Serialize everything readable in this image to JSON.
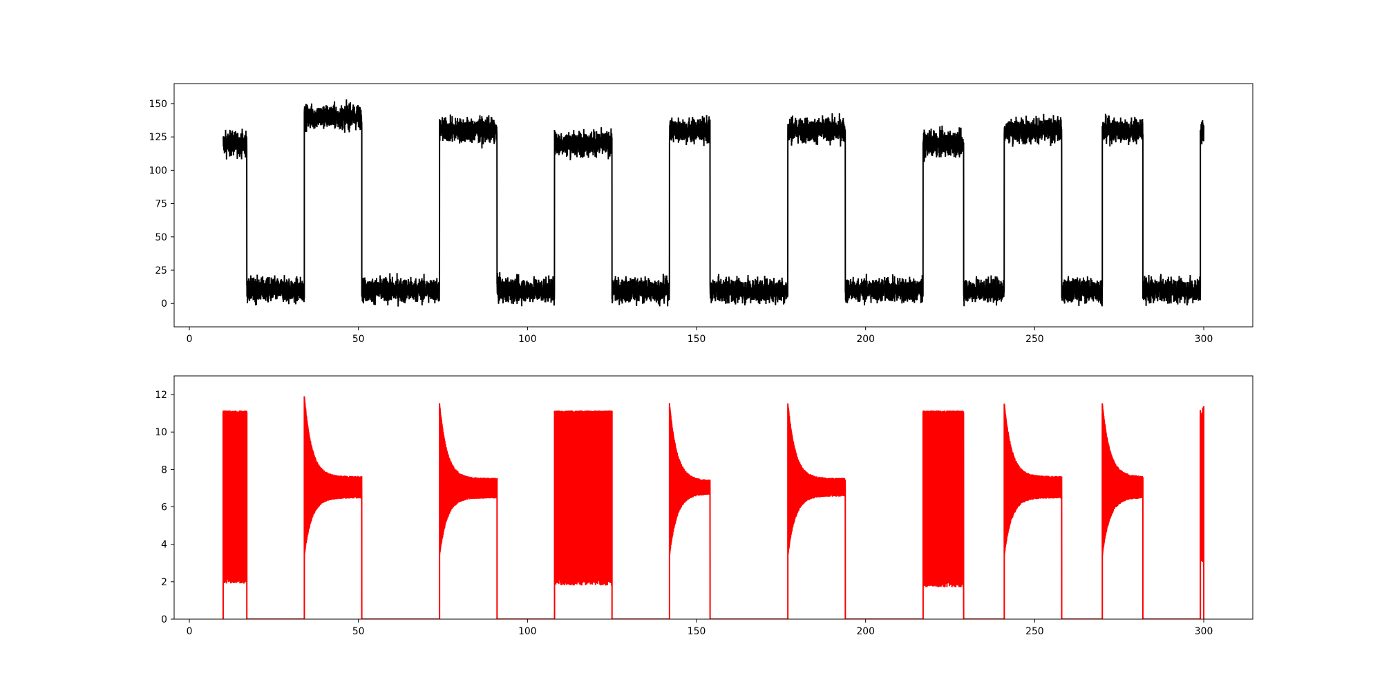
{
  "chart_data": [
    {
      "type": "line",
      "title": "",
      "xlabel": "",
      "ylabel": "",
      "xlim": [
        -4.5,
        314.5
      ],
      "ylim": [
        -17.5,
        165
      ],
      "xticks": [
        0,
        50,
        100,
        150,
        200,
        250,
        300
      ],
      "xtick_labels": [
        "0",
        "50",
        "100",
        "150",
        "200",
        "250",
        "300"
      ],
      "yticks": [
        0,
        25,
        50,
        75,
        100,
        125,
        150
      ],
      "ytick_labels": [
        "0",
        "25",
        "50",
        "75",
        "100",
        "125",
        "150"
      ],
      "grid": false,
      "series": [
        {
          "color": "#000000",
          "noise_amplitude": 10,
          "segments": [
            {
              "x_start": 10,
              "x_end": 17,
              "level": 120
            },
            {
              "x_start": 17,
              "x_end": 34,
              "level": 10
            },
            {
              "x_start": 34,
              "x_end": 51,
              "level": 140
            },
            {
              "x_start": 51,
              "x_end": 74,
              "level": 10
            },
            {
              "x_start": 74,
              "x_end": 91,
              "level": 130
            },
            {
              "x_start": 91,
              "x_end": 108,
              "level": 10
            },
            {
              "x_start": 108,
              "x_end": 125,
              "level": 120
            },
            {
              "x_start": 125,
              "x_end": 142,
              "level": 10
            },
            {
              "x_start": 142,
              "x_end": 154,
              "level": 130
            },
            {
              "x_start": 154,
              "x_end": 177,
              "level": 10
            },
            {
              "x_start": 177,
              "x_end": 194,
              "level": 130
            },
            {
              "x_start": 194,
              "x_end": 217,
              "level": 10
            },
            {
              "x_start": 217,
              "x_end": 229,
              "level": 120
            },
            {
              "x_start": 229,
              "x_end": 241,
              "level": 10
            },
            {
              "x_start": 241,
              "x_end": 258,
              "level": 130
            },
            {
              "x_start": 258,
              "x_end": 270,
              "level": 10
            },
            {
              "x_start": 270,
              "x_end": 282,
              "level": 130
            },
            {
              "x_start": 282,
              "x_end": 299,
              "level": 10
            },
            {
              "x_start": 299,
              "x_end": 300,
              "level": 130
            }
          ]
        }
      ]
    },
    {
      "type": "line",
      "title": "",
      "xlabel": "",
      "ylabel": "",
      "xlim": [
        -4.5,
        314.5
      ],
      "ylim": [
        0,
        13
      ],
      "xticks": [
        0,
        50,
        100,
        150,
        200,
        250,
        300
      ],
      "xtick_labels": [
        "0",
        "50",
        "100",
        "150",
        "200",
        "250",
        "300"
      ],
      "yticks": [
        0,
        2,
        4,
        6,
        8,
        10,
        12
      ],
      "ytick_labels": [
        "0",
        "2",
        "4",
        "6",
        "8",
        "10",
        "12"
      ],
      "grid": false,
      "series": [
        {
          "color": "#ff0000",
          "bursts": [
            {
              "kind": "band",
              "x_start": 10,
              "x_end": 17,
              "low": 2.0,
              "high": 11.15
            },
            {
              "kind": "decay",
              "x_start": 34,
              "x_end": 51,
              "peak": 11.8,
              "settle_low": 6.6,
              "settle_high": 7.5
            },
            {
              "kind": "decay",
              "x_start": 74,
              "x_end": 91,
              "peak": 11.4,
              "settle_low": 6.6,
              "settle_high": 7.4
            },
            {
              "kind": "band",
              "x_start": 108,
              "x_end": 125,
              "low": 1.9,
              "high": 11.15
            },
            {
              "kind": "decay",
              "x_start": 142,
              "x_end": 154,
              "peak": 11.4,
              "settle_low": 6.8,
              "settle_high": 7.3
            },
            {
              "kind": "decay",
              "x_start": 177,
              "x_end": 194,
              "peak": 11.45,
              "settle_low": 6.7,
              "settle_high": 7.4
            },
            {
              "kind": "band",
              "x_start": 217,
              "x_end": 229,
              "low": 1.8,
              "high": 11.15
            },
            {
              "kind": "decay",
              "x_start": 241,
              "x_end": 258,
              "peak": 11.45,
              "settle_low": 6.6,
              "settle_high": 7.5
            },
            {
              "kind": "decay",
              "x_start": 270,
              "x_end": 282,
              "peak": 11.45,
              "settle_low": 6.6,
              "settle_high": 7.5
            },
            {
              "kind": "decay",
              "x_start": 299,
              "x_end": 300,
              "peak": 11.5,
              "settle_low": 3.0,
              "settle_high": 11.0
            }
          ]
        }
      ]
    }
  ]
}
